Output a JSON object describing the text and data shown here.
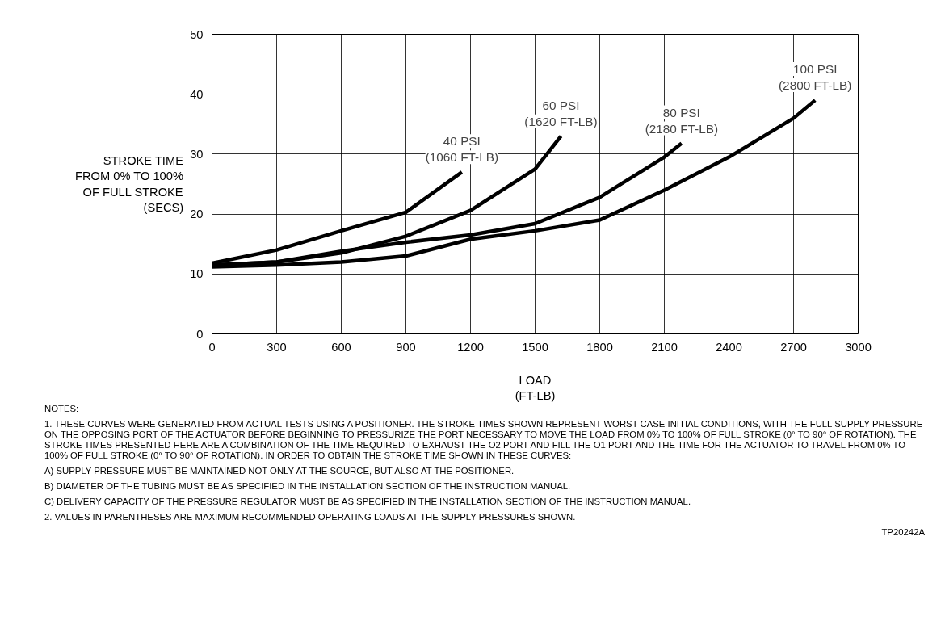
{
  "chart_data": {
    "type": "line",
    "xlabel": "LOAD\n(FT-LB)",
    "ylabel": "STROKE TIME\nFROM 0% TO 100%\nOF FULL STROKE\n(SECS)",
    "xlim": [
      0,
      3000
    ],
    "ylim": [
      0,
      50
    ],
    "xticks": [
      0,
      300,
      600,
      900,
      1200,
      1500,
      1800,
      2100,
      2400,
      2700,
      3000
    ],
    "yticks": [
      0,
      10,
      20,
      30,
      40,
      50
    ],
    "grid": true,
    "marker": "none",
    "line_style": "solid",
    "series": [
      {
        "name": "40 PSI",
        "color": "#000000",
        "x": [
          0,
          300,
          600,
          900,
          1160
        ],
        "values": [
          11.8,
          14,
          17.2,
          20.3,
          27
        ]
      },
      {
        "name": "60 PSI",
        "color": "#000000",
        "x": [
          0,
          300,
          600,
          900,
          1200,
          1500,
          1620
        ],
        "values": [
          11.5,
          12,
          13.5,
          16.3,
          20.6,
          27.5,
          33
        ]
      },
      {
        "name": "80 PSI",
        "color": "#000000",
        "x": [
          0,
          300,
          600,
          900,
          1200,
          1500,
          1800,
          2100,
          2180
        ],
        "values": [
          11.5,
          12,
          13.8,
          15.3,
          16.5,
          18.4,
          22.8,
          29.5,
          31.8
        ]
      },
      {
        "name": "100 PSI",
        "color": "#000000",
        "x": [
          0,
          300,
          600,
          900,
          1200,
          1500,
          1800,
          2100,
          2400,
          2700,
          2800
        ],
        "values": [
          11.2,
          11.5,
          12,
          13,
          15.8,
          17.2,
          19,
          24,
          29.5,
          36,
          39
        ]
      }
    ],
    "annotations": [
      "(1060 FT-LB)",
      "(1620 FT-LB)",
      "(2180 FT-LB)",
      "(2800 FT-LB)",
      "NOTES:",
      "1. THESE CURVES WERE GENERATED FROM ACTUAL TESTS USING A POSITIONER. THE STROKE TIMES SHOWN REPRESENT WORST CASE INITIAL CONDITIONS, WITH THE FULL SUPPLY PRESSURE ON THE OPPOSING PORT OF THE ACTUATOR BEFORE BEGINNING TO PRESSURIZE THE PORT NECESSARY TO MOVE THE LOAD FROM 0% TO 100% OF FULL STROKE (0° TO 90° OF ROTATION). THE STROKE TIMES PRESENTED HERE ARE A COMBINATION OF THE TIME REQUIRED TO EXHAUST THE O2 PORT AND FILL THE O1 PORT AND THE TIME FOR THE ACTUATOR TO TRAVEL FROM 0% TO 100% OF FULL STROKE (0° TO 90° OF ROTATION). IN ORDER TO OBTAIN THE STROKE TIME SHOWN IN THESE CURVES:",
      "A) SUPPLY PRESSURE MUST BE MAINTAINED NOT ONLY AT THE SOURCE, BUT ALSO AT THE POSITIONER.",
      "B) DIAMETER OF THE TUBING MUST BE AS SPECIFIED IN THE INSTALLATION SECTION OF THE INSTRUCTION MANUAL.",
      "C) DELIVERY CAPACITY OF THE PRESSURE REGULATOR MUST BE AS SPECIFIED IN THE INSTALLATION SECTION OF THE INSTRUCTION MANUAL.",
      "2. VALUES IN PARENTHESES ARE MAXIMUM RECOMMENDED OPERATING LOADS AT THE SUPPLY PRESSURES SHOWN.",
      "TP20242A"
    ]
  }
}
